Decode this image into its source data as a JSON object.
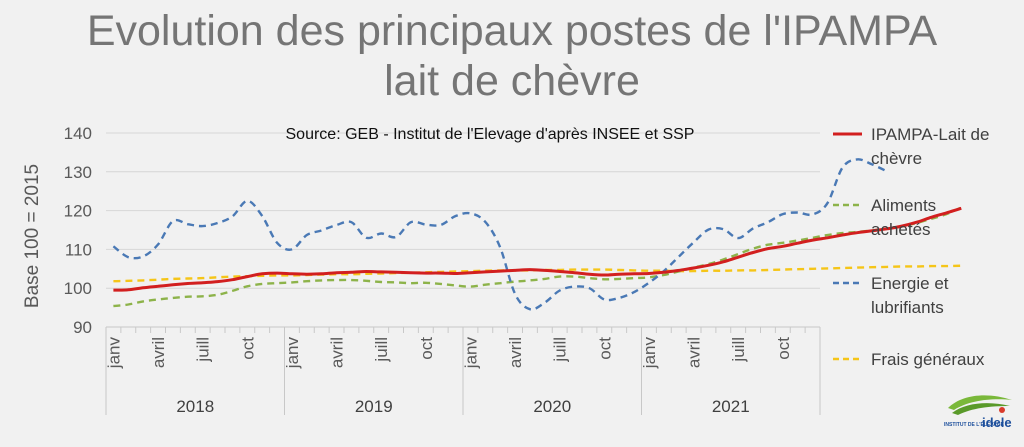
{
  "title": {
    "line1": "Evolution des principaux postes de l'IPAMPA",
    "line2": "lait de chèvre"
  },
  "chart_data": {
    "type": "line",
    "title": "Evolution des principaux postes de l'IPAMPA lait de chèvre",
    "subtitle": "Source: GEB - Institut de l'Elevage d'après INSEE et SSP",
    "xlabel": "",
    "ylabel": "Base 100 = 2015",
    "ylim": [
      90,
      140
    ],
    "yticks": [
      90,
      100,
      110,
      120,
      130,
      140
    ],
    "grid": true,
    "legend_position": "right",
    "x_tick_labels": [
      "janv",
      "avril",
      "juill",
      "oct",
      "janv",
      "avril",
      "juill",
      "oct",
      "janv",
      "avril",
      "juill",
      "oct",
      "janv",
      "avril",
      "juill",
      "oct"
    ],
    "years": [
      "2018",
      "2019",
      "2020",
      "2021"
    ],
    "months_per_year": 12,
    "series": [
      {
        "name": "IPAMPA-Lait de chèvre",
        "style": "solid",
        "color": "#d21f1f",
        "values": [
          99.5,
          99.6,
          100.1,
          100.5,
          100.9,
          101.2,
          101.4,
          101.7,
          102.2,
          103.0,
          103.7,
          103.9,
          103.7,
          103.6,
          103.7,
          104.0,
          104.1,
          104.3,
          104.2,
          104.1,
          104.0,
          103.9,
          103.9,
          103.8,
          104.0,
          104.2,
          104.4,
          104.6,
          104.8,
          104.6,
          104.3,
          104.0,
          103.6,
          103.4,
          103.6,
          103.7,
          103.8,
          104.1,
          104.6,
          105.2,
          105.9,
          106.8,
          108.0,
          109.2,
          110.2,
          110.8,
          111.6,
          112.4,
          113.0,
          113.7,
          114.3,
          114.8,
          115.3,
          116.0,
          117.0,
          118.3,
          119.4,
          120.6
        ]
      },
      {
        "name": "Aliments achetés",
        "style": "dashed",
        "color": "#8db34a",
        "values": [
          95.4,
          95.8,
          96.6,
          97.1,
          97.5,
          97.8,
          97.9,
          98.3,
          99.3,
          100.5,
          101.1,
          101.3,
          101.5,
          101.8,
          102.0,
          102.1,
          102.1,
          101.9,
          101.6,
          101.5,
          101.3,
          101.4,
          101.1,
          100.7,
          100.4,
          100.9,
          101.3,
          101.7,
          102.0,
          102.4,
          103.0,
          103.0,
          102.6,
          102.3,
          102.4,
          102.6,
          102.8,
          103.4,
          104.3,
          105.3,
          106.2,
          107.4,
          108.8,
          110.2,
          111.2,
          111.7,
          112.3,
          113.0,
          113.7,
          114.2,
          114.5,
          114.9,
          115.3,
          115.9,
          116.8,
          117.9,
          119.1,
          120.8
        ]
      },
      {
        "name": "Energie et lubrifiants",
        "style": "dashed",
        "color": "#4a79b5",
        "values": [
          110.8,
          108.0,
          108.2,
          111.3,
          117.3,
          116.5,
          116.0,
          116.8,
          118.5,
          122.5,
          118.6,
          111.7,
          110.0,
          113.7,
          114.9,
          116.3,
          117.0,
          113.0,
          114.1,
          113.2,
          117.0,
          116.4,
          116.3,
          118.6,
          119.3,
          117.1,
          110.5,
          98.5,
          94.6,
          96.3,
          99.4,
          100.4,
          100.0,
          97.1,
          97.5,
          99.0,
          101.4,
          104.4,
          108.1,
          111.8,
          115.1,
          115.2,
          112.9,
          115.4,
          117.0,
          119.1,
          119.5,
          119.0,
          121.9,
          131.0,
          133.2,
          131.9,
          130.1
        ]
      },
      {
        "name": "Frais généraux",
        "style": "dashed",
        "color": "#f5c518",
        "values": [
          101.8,
          101.9,
          102.0,
          102.2,
          102.4,
          102.5,
          102.6,
          102.8,
          103.0,
          103.1,
          103.2,
          103.3,
          103.3,
          103.4,
          103.5,
          103.6,
          103.6,
          103.7,
          103.8,
          103.9,
          104.0,
          104.1,
          104.2,
          104.3,
          104.4,
          104.5,
          104.6,
          104.6,
          104.6,
          104.7,
          104.7,
          104.8,
          104.8,
          104.8,
          104.7,
          104.6,
          104.5,
          104.5,
          104.4,
          104.4,
          104.5,
          104.5,
          104.6,
          104.6,
          104.7,
          104.8,
          104.9,
          105.0,
          105.1,
          105.2,
          105.3,
          105.4,
          105.5,
          105.6,
          105.6,
          105.7,
          105.7,
          105.8
        ]
      }
    ]
  },
  "legend": {
    "items": [
      {
        "lines": [
          "IPAMPA-Lait de",
          "chèvre"
        ]
      },
      {
        "lines": [
          "Aliments",
          "achetés"
        ]
      },
      {
        "lines": [
          "Energie et",
          "lubrifiants"
        ]
      },
      {
        "lines": [
          "Frais généraux"
        ]
      }
    ]
  },
  "logo": {
    "small_text": "INSTITUT DE L'ÉLEVAGE",
    "brand_text": "idele"
  }
}
